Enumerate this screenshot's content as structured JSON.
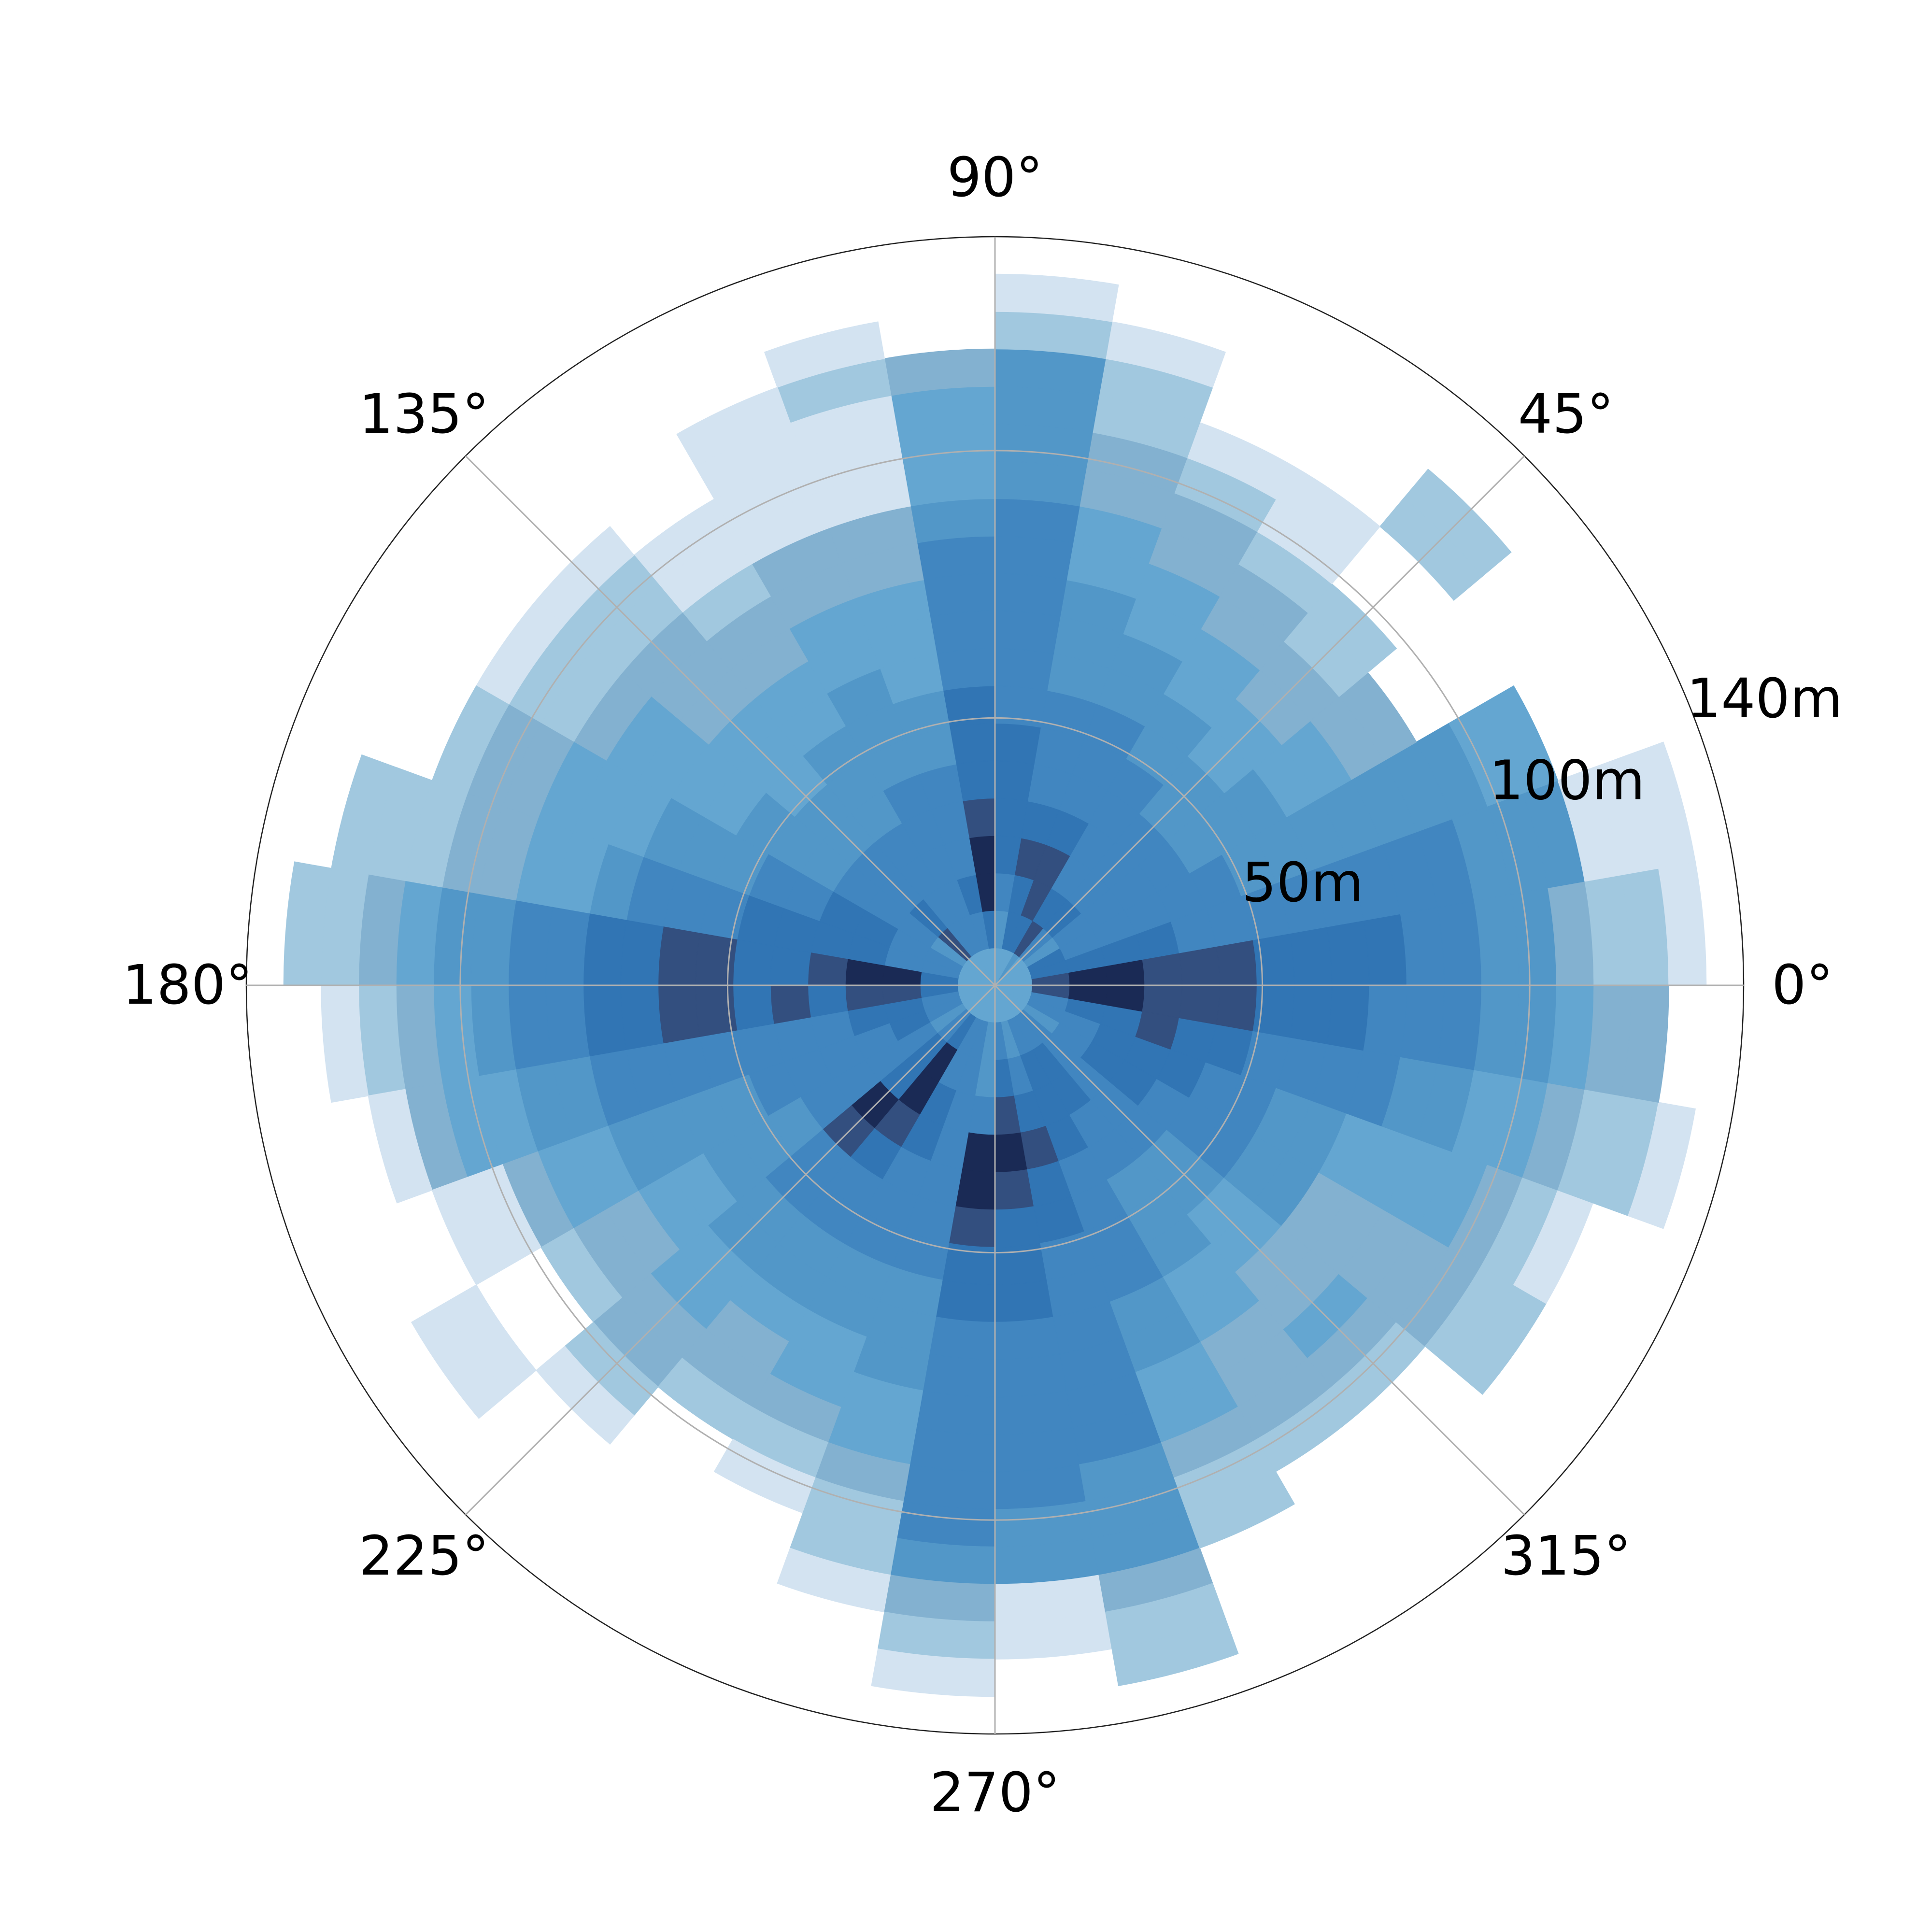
{
  "chart_data": {
    "type": "heatmap",
    "subtype": "polar-histogram",
    "title": "",
    "angle_ticks": [
      "0°",
      "45°",
      "90°",
      "135°",
      "180°",
      "225°",
      "270°",
      "315°"
    ],
    "radial_ticks": [
      "50m",
      "100m",
      "140m"
    ],
    "radial_tick_values": [
      50,
      100,
      140
    ],
    "rmax": 140,
    "grid": true,
    "colormap": "Blues",
    "color_stops": [
      "#d3e3f1",
      "#a1c8df",
      "#83b1d0",
      "#64a6d1",
      "#5297c8",
      "#4186c0",
      "#3175b4",
      "#334f7f",
      "#1a2a55"
    ],
    "ring_edges": [
      0,
      7,
      14,
      21,
      28,
      35,
      42,
      49,
      56,
      63,
      70,
      77,
      84,
      91,
      98,
      105,
      112,
      119,
      126,
      133
    ],
    "sectors": [
      {
        "angle_start": 0,
        "angle_end": 10,
        "levels": [
          3,
          7,
          8,
          8,
          7,
          7,
          7,
          6,
          6,
          6,
          6,
          5,
          5,
          4,
          4,
          2,
          1,
          1,
          0
        ]
      },
      {
        "angle_start": 10,
        "angle_end": 20,
        "levels": [
          3,
          6,
          6,
          6,
          6,
          5,
          5,
          5,
          5,
          5,
          5,
          5,
          5,
          4,
          4,
          4,
          0,
          0,
          0
        ]
      },
      {
        "angle_start": 20,
        "angle_end": 30,
        "levels": [
          3,
          6,
          5,
          5,
          5,
          5,
          5,
          4,
          4,
          4,
          4,
          4,
          4,
          4,
          3,
          3,
          -1,
          -1,
          -1
        ]
      },
      {
        "angle_start": 30,
        "angle_end": 40,
        "levels": [
          3,
          4,
          5,
          5,
          5,
          5,
          4,
          4,
          4,
          3,
          3,
          2,
          2,
          -1,
          -1,
          -1,
          -1,
          -1,
          -1
        ]
      },
      {
        "angle_start": 40,
        "angle_end": 50,
        "levels": [
          3,
          5,
          6,
          5,
          5,
          5,
          4,
          4,
          3,
          3,
          2,
          2,
          1,
          1,
          -1,
          -1,
          1,
          1,
          -1
        ]
      },
      {
        "angle_start": 50,
        "angle_end": 60,
        "levels": [
          4,
          7,
          6,
          5,
          5,
          5,
          5,
          4,
          4,
          3,
          3,
          2,
          2,
          1,
          0,
          0,
          -1,
          -1,
          -1
        ]
      },
      {
        "angle_start": 60,
        "angle_end": 70,
        "levels": [
          3,
          6,
          7,
          7,
          6,
          5,
          5,
          5,
          4,
          4,
          3,
          3,
          2,
          2,
          1,
          0,
          -1,
          -1,
          -1
        ]
      },
      {
        "angle_start": 70,
        "angle_end": 80,
        "levels": [
          3,
          6,
          6,
          7,
          6,
          5,
          5,
          5,
          4,
          4,
          4,
          3,
          3,
          2,
          2,
          1,
          1,
          0,
          -1
        ]
      },
      {
        "angle_start": 80,
        "angle_end": 90,
        "levels": [
          3,
          4,
          5,
          6,
          6,
          6,
          6,
          5,
          5,
          5,
          5,
          5,
          5,
          4,
          4,
          4,
          4,
          1,
          0
        ]
      },
      {
        "angle_start": 90,
        "angle_end": 100,
        "levels": [
          3,
          6,
          8,
          8,
          7,
          6,
          6,
          6,
          5,
          5,
          5,
          5,
          4,
          3,
          3,
          3,
          2,
          -1,
          -1
        ]
      },
      {
        "angle_start": 100,
        "angle_end": 110,
        "levels": [
          3,
          5,
          6,
          5,
          5,
          5,
          4,
          4,
          3,
          3,
          3,
          2,
          2,
          0,
          0,
          0,
          1,
          0,
          -1
        ]
      },
      {
        "angle_start": 110,
        "angle_end": 120,
        "levels": [
          3,
          5,
          5,
          5,
          5,
          5,
          4,
          4,
          4,
          3,
          3,
          2,
          2,
          0,
          0,
          0,
          0,
          -1,
          -1
        ]
      },
      {
        "angle_start": 120,
        "angle_end": 130,
        "levels": [
          3,
          5,
          5,
          5,
          5,
          4,
          4,
          4,
          3,
          3,
          2,
          2,
          1,
          0,
          0,
          -1,
          -1,
          -1,
          -1
        ]
      },
      {
        "angle_start": 130,
        "angle_end": 140,
        "levels": [
          3,
          7,
          6,
          5,
          5,
          4,
          4,
          3,
          3,
          3,
          2,
          2,
          2,
          1,
          1,
          0,
          -1,
          -1,
          -1
        ]
      },
      {
        "angle_start": 140,
        "angle_end": 150,
        "levels": [
          3,
          4,
          5,
          5,
          5,
          4,
          4,
          4,
          3,
          3,
          3,
          3,
          2,
          1,
          1,
          0,
          -1,
          -1,
          -1
        ]
      },
      {
        "angle_start": 150,
        "angle_end": 160,
        "levels": [
          3,
          5,
          5,
          6,
          6,
          5,
          5,
          4,
          4,
          4,
          3,
          3,
          3,
          2,
          2,
          1,
          -1,
          -1,
          -1
        ]
      },
      {
        "angle_start": 160,
        "angle_end": 170,
        "levels": [
          3,
          5,
          5,
          6,
          6,
          6,
          6,
          5,
          5,
          5,
          4,
          3,
          3,
          2,
          2,
          1,
          1,
          1,
          -1
        ]
      },
      {
        "angle_start": 170,
        "angle_end": 180,
        "levels": [
          3,
          6,
          8,
          8,
          7,
          6,
          6,
          7,
          7,
          6,
          6,
          5,
          5,
          4,
          4,
          3,
          2,
          1,
          1
        ]
      },
      {
        "angle_start": 180,
        "angle_end": 190,
        "levels": [
          3,
          6,
          7,
          7,
          6,
          7,
          6,
          7,
          7,
          6,
          6,
          5,
          5,
          4,
          3,
          2,
          1,
          0,
          -1
        ]
      },
      {
        "angle_start": 190,
        "angle_end": 200,
        "levels": [
          3,
          5,
          6,
          6,
          5,
          5,
          5,
          5,
          5,
          5,
          5,
          4,
          4,
          3,
          3,
          2,
          0,
          -1,
          -1
        ]
      },
      {
        "angle_start": 200,
        "angle_end": 210,
        "levels": [
          3,
          5,
          6,
          5,
          5,
          5,
          5,
          4,
          4,
          4,
          4,
          3,
          3,
          2,
          0,
          0,
          -1,
          -1,
          -1
        ]
      },
      {
        "angle_start": 210,
        "angle_end": 220,
        "levels": [
          3,
          4,
          5,
          5,
          5,
          5,
          4,
          4,
          4,
          3,
          3,
          2,
          2,
          1,
          -1,
          -1,
          0,
          0,
          -1
        ]
      },
      {
        "angle_start": 220,
        "angle_end": 230,
        "levels": [
          3,
          5,
          6,
          6,
          8,
          7,
          5,
          5,
          4,
          4,
          3,
          3,
          2,
          2,
          1,
          0,
          -1,
          -1,
          -1
        ]
      },
      {
        "angle_start": 230,
        "angle_end": 240,
        "levels": [
          3,
          6,
          8,
          8,
          7,
          6,
          5,
          5,
          4,
          4,
          3,
          2,
          2,
          1,
          -1,
          -1,
          -1,
          -1,
          -1
        ]
      },
      {
        "angle_start": 240,
        "angle_end": 250,
        "levels": [
          3,
          5,
          5,
          6,
          6,
          5,
          5,
          5,
          4,
          4,
          3,
          3,
          2,
          1,
          0,
          -1,
          -1,
          -1,
          -1
        ]
      },
      {
        "angle_start": 250,
        "angle_end": 260,
        "levels": [
          3,
          5,
          5,
          5,
          5,
          5,
          5,
          5,
          4,
          4,
          4,
          3,
          3,
          2,
          1,
          1,
          0,
          -1,
          -1
        ]
      },
      {
        "angle_start": 260,
        "angle_end": 270,
        "levels": [
          3,
          4,
          4,
          5,
          8,
          8,
          7,
          6,
          6,
          5,
          5,
          5,
          5,
          5,
          5,
          4,
          2,
          1,
          0
        ]
      },
      {
        "angle_start": 270,
        "angle_end": 280,
        "levels": [
          3,
          5,
          6,
          7,
          8,
          7,
          6,
          6,
          6,
          5,
          5,
          5,
          5,
          5,
          4,
          4,
          0,
          0,
          -1
        ]
      },
      {
        "angle_start": 280,
        "angle_end": 290,
        "levels": [
          3,
          4,
          5,
          6,
          7,
          6,
          6,
          5,
          5,
          5,
          5,
          5,
          5,
          4,
          4,
          4,
          2,
          1,
          1
        ]
      },
      {
        "angle_start": 290,
        "angle_end": 300,
        "levels": [
          3,
          5,
          6,
          6,
          6,
          5,
          5,
          5,
          5,
          4,
          4,
          3,
          3,
          2,
          1,
          1,
          -1,
          -1,
          -1
        ]
      },
      {
        "angle_start": 300,
        "angle_end": 310,
        "levels": [
          3,
          5,
          6,
          6,
          5,
          5,
          4,
          4,
          4,
          3,
          3,
          2,
          2,
          2,
          1,
          -1,
          -1,
          -1,
          -1
        ]
      },
      {
        "angle_start": 310,
        "angle_end": 320,
        "levels": [
          3,
          5,
          5,
          5,
          5,
          5,
          4,
          4,
          3,
          3,
          2,
          2,
          3,
          2,
          1,
          -1,
          -1,
          -1,
          -1
        ]
      },
      {
        "angle_start": 320,
        "angle_end": 330,
        "levels": [
          3,
          4,
          5,
          6,
          6,
          5,
          5,
          5,
          4,
          4,
          2,
          2,
          2,
          2,
          2,
          1,
          1,
          -1,
          -1
        ]
      },
      {
        "angle_start": 330,
        "angle_end": 340,
        "levels": [
          3,
          5,
          5,
          6,
          6,
          6,
          5,
          5,
          4,
          4,
          3,
          3,
          3,
          3,
          2,
          1,
          0,
          -1,
          -1
        ]
      },
      {
        "angle_start": 340,
        "angle_end": 350,
        "levels": [
          3,
          5,
          6,
          6,
          7,
          6,
          6,
          5,
          5,
          5,
          5,
          4,
          4,
          3,
          3,
          2,
          1,
          1,
          0
        ]
      },
      {
        "angle_start": 350,
        "angle_end": 360,
        "levels": [
          3,
          7,
          8,
          8,
          7,
          7,
          7,
          6,
          6,
          6,
          5,
          5,
          5,
          4,
          4,
          3,
          2,
          2,
          -1
        ]
      }
    ]
  }
}
